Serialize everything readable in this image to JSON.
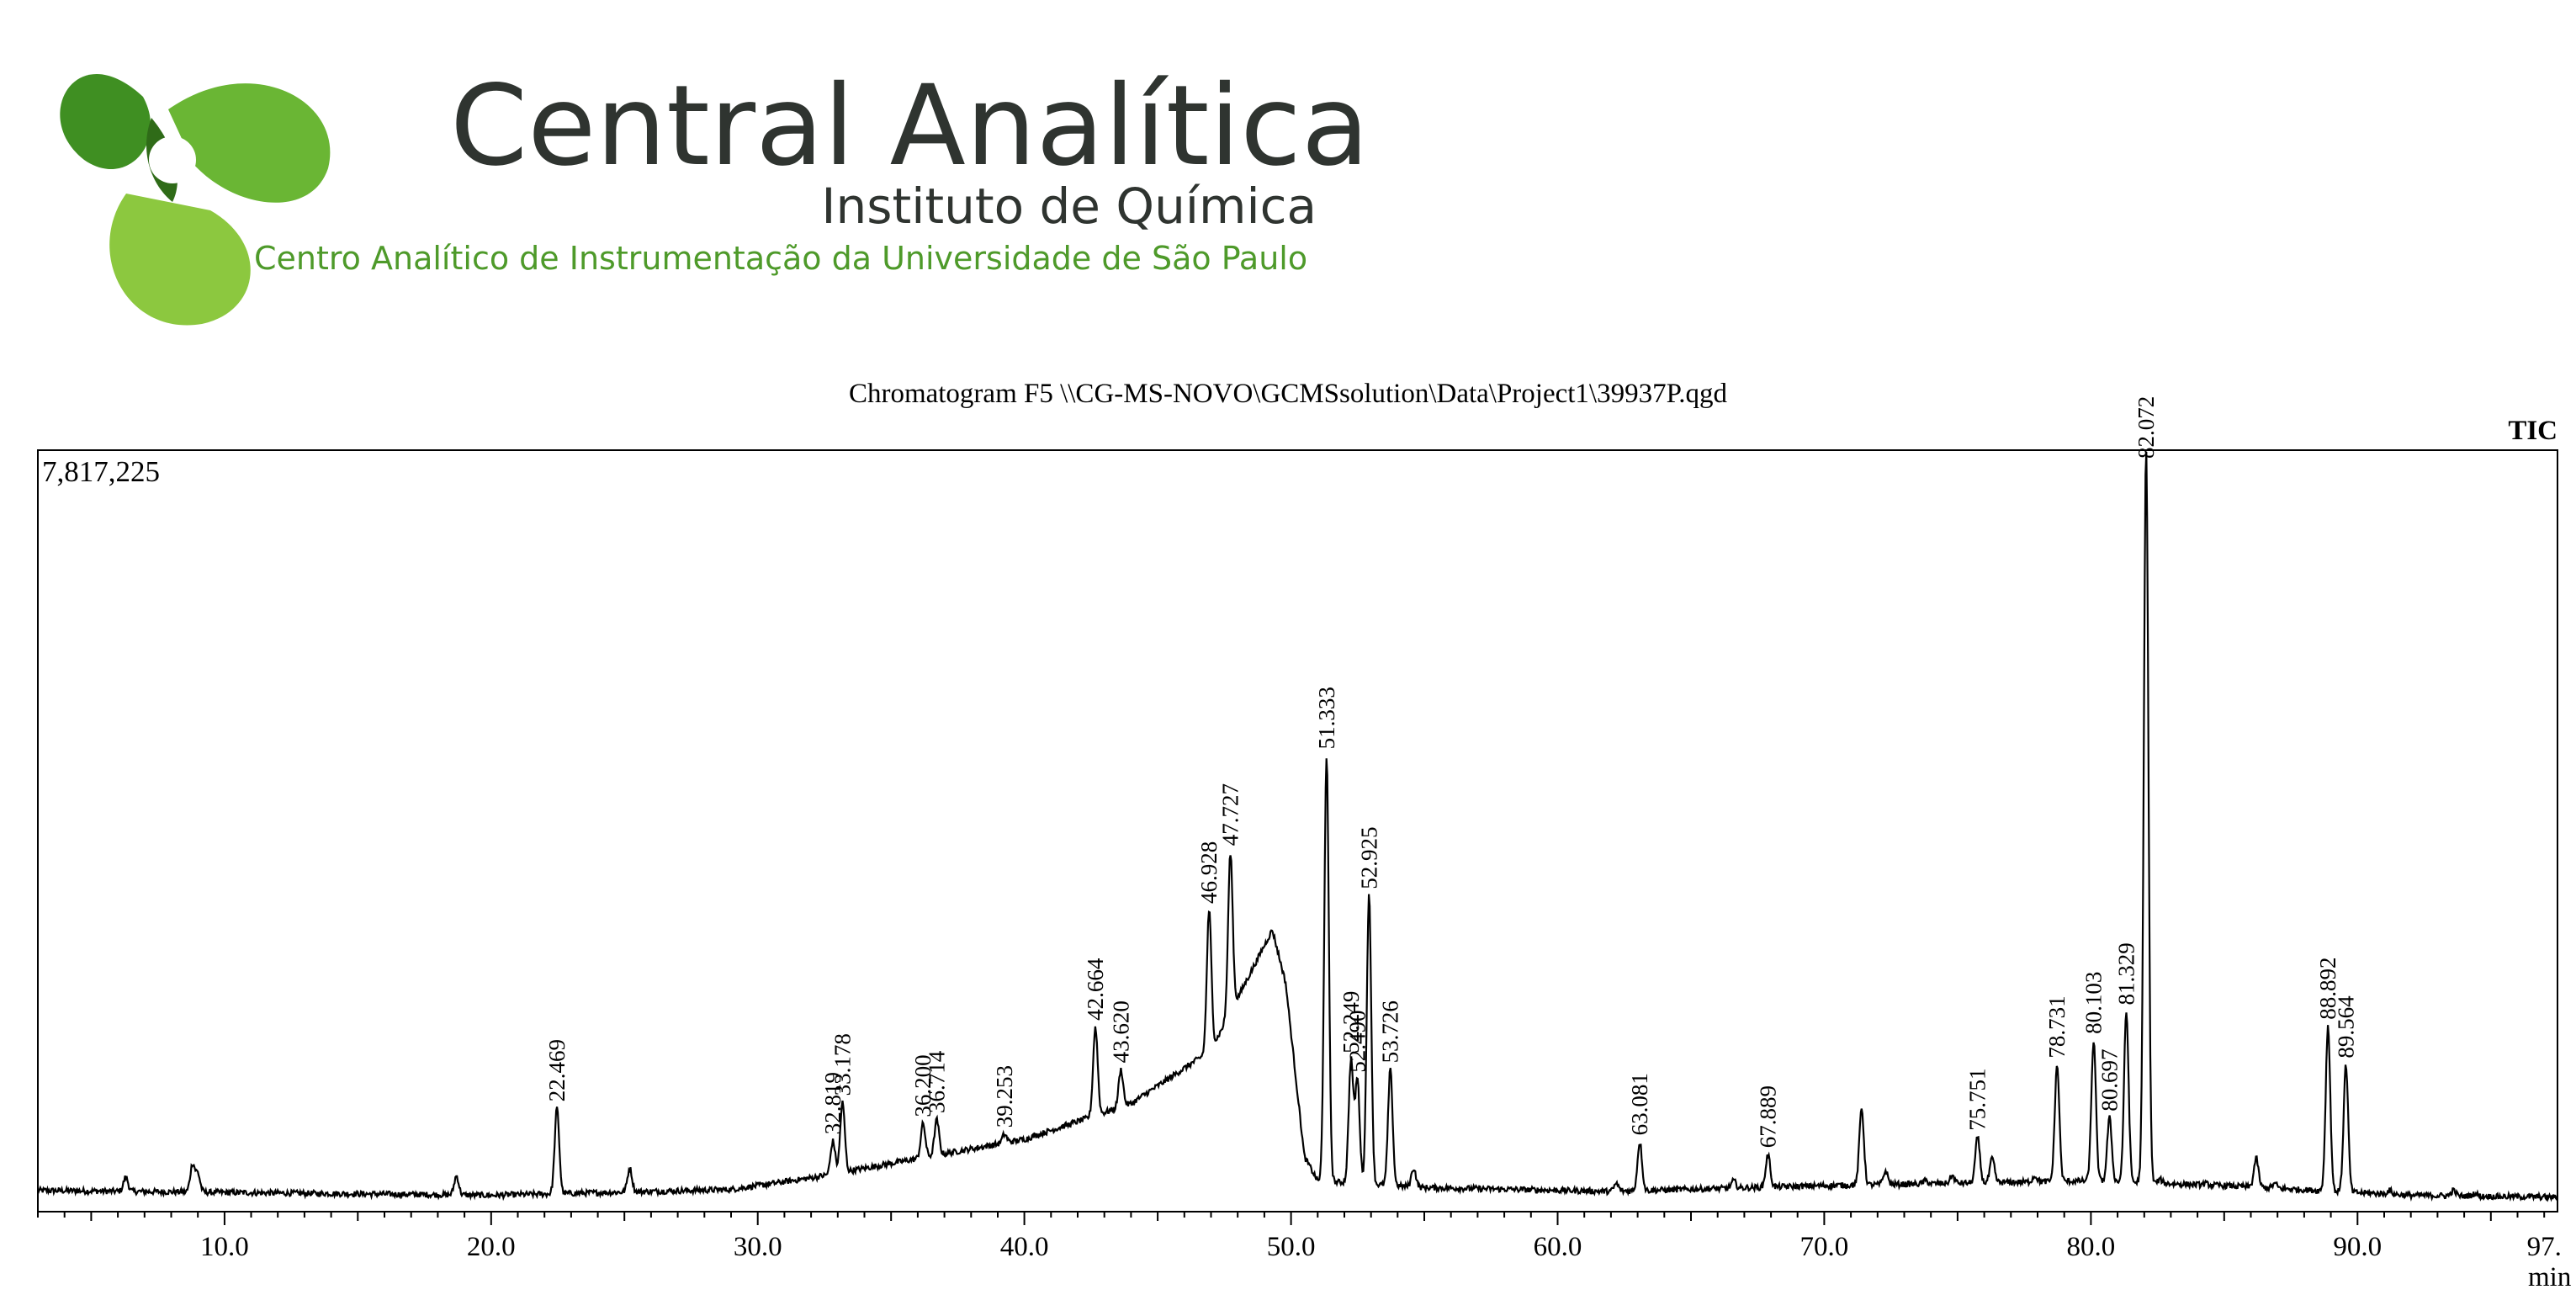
{
  "branding": {
    "name": "Central Analítica",
    "subtitle": "Instituto de Química",
    "tagline": "Centro Analítico de Instrumentação da Universidade de São Paulo",
    "accent": "#5aab2e",
    "accent_light": "#8cc83f",
    "text_color": "#2f3430"
  },
  "chart_data": {
    "type": "line",
    "title": "Chromatogram F5 \\\\CG-MS-NOVO\\GCMSsolution\\Data\\Project1\\39937P.qgd",
    "trace_label": "TIC",
    "max_intensity_label": "7,817,225",
    "ymax": 7817225,
    "xlabel": "min",
    "xlim": [
      3.0,
      97.5
    ],
    "ylim": [
      0,
      7817225
    ],
    "x_ticks": [
      10.0,
      20.0,
      30.0,
      40.0,
      50.0,
      60.0,
      70.0,
      80.0,
      90.0
    ],
    "x_tick_labels": [
      "10.0",
      "20.0",
      "30.0",
      "40.0",
      "50.0",
      "60.0",
      "70.0",
      "80.0",
      "90.0",
      "97."
    ],
    "last_tick_position": 97.0,
    "grid": false,
    "peaks": [
      {
        "time": 22.469,
        "label": "22.469",
        "intensity": 1000000
      },
      {
        "time": 32.819,
        "label": "32.819",
        "intensity": 660000
      },
      {
        "time": 33.178,
        "label": "33.178",
        "intensity": 1060000
      },
      {
        "time": 36.2,
        "label": "36.200",
        "intensity": 840000
      },
      {
        "time": 36.714,
        "label": "36.714",
        "intensity": 880000
      },
      {
        "time": 39.253,
        "label": "39.253",
        "intensity": 730000
      },
      {
        "time": 42.664,
        "label": "42.664",
        "intensity": 1840000
      },
      {
        "time": 43.62,
        "label": "43.620",
        "intensity": 1400000
      },
      {
        "time": 46.928,
        "label": "46.928",
        "intensity": 3050000
      },
      {
        "time": 47.727,
        "label": "47.727",
        "intensity": 3650000
      },
      {
        "time": 51.333,
        "label": "51.333",
        "intensity": 4650000
      },
      {
        "time": 52.249,
        "label": "52.249",
        "intensity": 1500000
      },
      {
        "time": 52.49,
        "label": "52.490",
        "intensity": 1300000
      },
      {
        "time": 52.925,
        "label": "52.925",
        "intensity": 3200000
      },
      {
        "time": 53.726,
        "label": "53.726",
        "intensity": 1400000
      },
      {
        "time": 63.081,
        "label": "63.081",
        "intensity": 650000
      },
      {
        "time": 67.889,
        "label": "67.889",
        "intensity": 520000
      },
      {
        "time": 75.751,
        "label": "75.751",
        "intensity": 700000
      },
      {
        "time": 78.731,
        "label": "78.731",
        "intensity": 1450000
      },
      {
        "time": 80.103,
        "label": "80.103",
        "intensity": 1700000
      },
      {
        "time": 80.697,
        "label": "80.697",
        "intensity": 900000
      },
      {
        "time": 81.329,
        "label": "81.329",
        "intensity": 2000000
      },
      {
        "time": 82.072,
        "label": "82.072",
        "intensity": 7817225
      },
      {
        "time": 88.892,
        "label": "88.892",
        "intensity": 1850000
      },
      {
        "time": 89.564,
        "label": "89.564",
        "intensity": 1450000
      }
    ],
    "minor_peaks": [
      {
        "time": 6.3,
        "intensity": 290000
      },
      {
        "time": 8.8,
        "intensity": 420000
      },
      {
        "time": 9.0,
        "intensity": 320000
      },
      {
        "time": 13.8,
        "intensity": 120000
      },
      {
        "time": 18.7,
        "intensity": 300000
      },
      {
        "time": 25.2,
        "intensity": 380000
      },
      {
        "time": 27.6,
        "intensity": 120000
      },
      {
        "time": 34.9,
        "intensity": 300000
      },
      {
        "time": 35.4,
        "intensity": 280000
      },
      {
        "time": 40.2,
        "intensity": 300000
      },
      {
        "time": 40.7,
        "intensity": 420000
      },
      {
        "time": 41.2,
        "intensity": 380000
      },
      {
        "time": 41.8,
        "intensity": 300000
      },
      {
        "time": 54.6,
        "intensity": 380000
      },
      {
        "time": 57.0,
        "intensity": 150000
      },
      {
        "time": 59.0,
        "intensity": 140000
      },
      {
        "time": 62.2,
        "intensity": 220000
      },
      {
        "time": 66.6,
        "intensity": 250000
      },
      {
        "time": 69.2,
        "intensity": 130000
      },
      {
        "time": 71.4,
        "intensity": 1000000
      },
      {
        "time": 72.3,
        "intensity": 350000
      },
      {
        "time": 73.8,
        "intensity": 250000
      },
      {
        "time": 74.8,
        "intensity": 300000
      },
      {
        "time": 76.3,
        "intensity": 480000
      },
      {
        "time": 77.9,
        "intensity": 300000
      },
      {
        "time": 82.6,
        "intensity": 260000
      },
      {
        "time": 84.3,
        "intensity": 220000
      },
      {
        "time": 86.2,
        "intensity": 480000
      },
      {
        "time": 86.9,
        "intensity": 220000
      },
      {
        "time": 91.2,
        "intensity": 150000
      },
      {
        "time": 93.6,
        "intensity": 150000
      },
      {
        "time": 94.4,
        "intensity": 120000
      }
    ],
    "baseline": [
      {
        "time": 3.0,
        "intensity": 150000
      },
      {
        "time": 20.0,
        "intensity": 100000
      },
      {
        "time": 29.0,
        "intensity": 160000
      },
      {
        "time": 32.0,
        "intensity": 280000
      },
      {
        "time": 36.0,
        "intensity": 480000
      },
      {
        "time": 40.0,
        "intensity": 680000
      },
      {
        "time": 44.0,
        "intensity": 1050000
      },
      {
        "time": 47.0,
        "intensity": 1600000
      },
      {
        "time": 49.3,
        "intensity": 2850000
      },
      {
        "time": 49.8,
        "intensity": 2300000
      },
      {
        "time": 50.5,
        "intensity": 500000
      },
      {
        "time": 51.0,
        "intensity": 250000
      },
      {
        "time": 55.0,
        "intensity": 180000
      },
      {
        "time": 62.0,
        "intensity": 140000
      },
      {
        "time": 70.0,
        "intensity": 200000
      },
      {
        "time": 80.0,
        "intensity": 250000
      },
      {
        "time": 85.0,
        "intensity": 200000
      },
      {
        "time": 92.0,
        "intensity": 100000
      },
      {
        "time": 97.5,
        "intensity": 80000
      }
    ]
  }
}
